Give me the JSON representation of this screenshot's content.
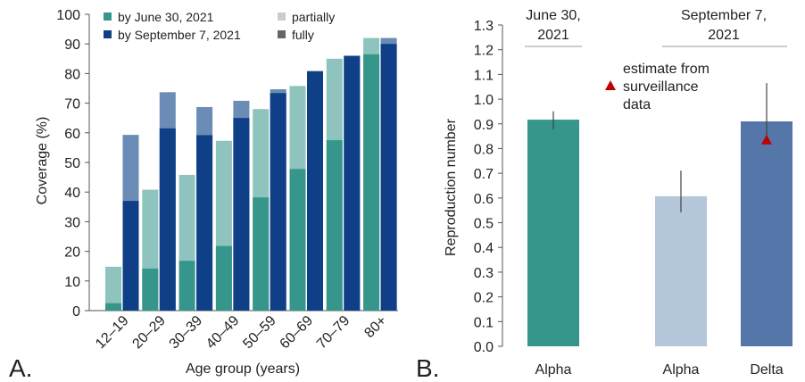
{
  "colors": {
    "june_partial": "#8ec4bd",
    "june_full": "#37968b",
    "sept_partial": "#6a8cb6",
    "sept_full": "#0f3f86",
    "b_june_alpha": "#37968b",
    "b_sept_alpha": "#b4c6d9",
    "b_sept_delta": "#5576a9",
    "marker": "#c00000",
    "axis": "#555555",
    "legend_partial": "#cccccc",
    "legend_fully": "#666666"
  },
  "chart_data": [
    {
      "panel_label": "A.",
      "type": "bar",
      "xlabel": "Age group (years)",
      "ylabel": "Coverage (%)",
      "ylim": [
        0,
        100
      ],
      "yticks": [
        "0",
        "10",
        "20",
        "30",
        "40",
        "50",
        "60",
        "70",
        "80",
        "90",
        "100"
      ],
      "categories": [
        "12–19",
        "20–29",
        "30–39",
        "40–49",
        "50–59",
        "60–69",
        "70–79",
        "80+"
      ],
      "legend": {
        "series_names": [
          "by June 30, 2021",
          "by September 7, 2021"
        ],
        "partial_label": "partially",
        "fully_label": "fully",
        "placement": "top"
      },
      "series": [
        {
          "name": "by June 30, 2021",
          "partially": [
            14.8,
            40.8,
            45.8,
            57.3,
            68.0,
            75.8,
            85.0,
            92.0
          ],
          "fully": [
            2.5,
            14.2,
            16.8,
            21.8,
            38.2,
            47.8,
            57.5,
            86.5
          ]
        },
        {
          "name": "by September 7, 2021",
          "partially": [
            59.3,
            73.7,
            68.7,
            70.8,
            74.7,
            80.8,
            86.0,
            92.0
          ],
          "fully": [
            37.0,
            61.5,
            59.2,
            65.0,
            73.4,
            80.8,
            86.0,
            90.0
          ]
        }
      ]
    },
    {
      "panel_label": "B.",
      "type": "bar",
      "ylabel": "Reproduction number",
      "ylim": [
        0,
        1.3
      ],
      "yticks": [
        "0.0",
        "0.1",
        "0.2",
        "0.3",
        "0.4",
        "0.5",
        "0.6",
        "0.7",
        "0.8",
        "0.9",
        "1.0",
        "1.1",
        "1.2",
        "1.3"
      ],
      "groups": [
        {
          "title_lines": [
            "June 30,",
            "2021"
          ],
          "bars": [
            {
              "label": "Alpha",
              "value": 0.917,
              "low": 0.878,
              "high": 0.951,
              "color": "#37968b"
            }
          ]
        },
        {
          "title_lines": [
            "September 7,",
            "2021"
          ],
          "bars": [
            {
              "label": "Alpha",
              "value": 0.607,
              "low": 0.542,
              "high": 0.711,
              "color": "#b4c6d9"
            },
            {
              "label": "Delta",
              "value": 0.91,
              "low": 0.828,
              "high": 1.065,
              "color": "#5576a9",
              "surveillance_estimate": 0.835
            }
          ]
        }
      ],
      "annotation": {
        "lines": [
          "estimate from",
          "surveillance",
          "data"
        ]
      }
    }
  ]
}
